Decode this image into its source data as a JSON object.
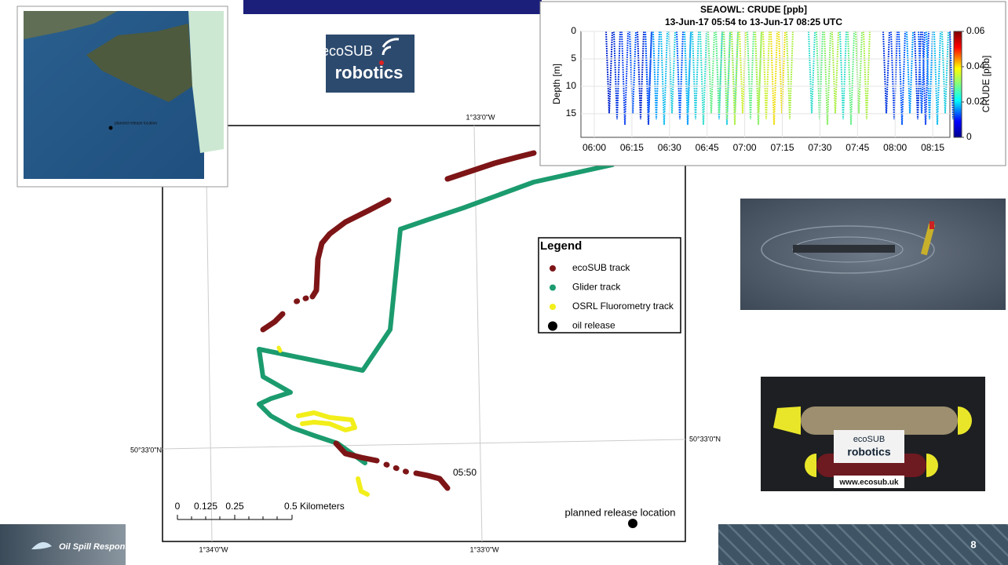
{
  "footer": {
    "brand": "Oil Spill Response",
    "page_number": "8"
  },
  "logo": {
    "line1": "ecoSUB",
    "line2": "robotics"
  },
  "map": {
    "grid_labels": {
      "top": "1°33'0\"W",
      "bottom_left": "1°34'0\"W",
      "bottom_right": "1°33'0\"W",
      "left": "50°33'0\"N",
      "right": "50°33'0\"N"
    },
    "legend": {
      "title": "Legend",
      "items": [
        {
          "label": "ecoSUB track",
          "color": "#7d1517"
        },
        {
          "label": "Glider track",
          "color": "#1b9b6e"
        },
        {
          "label": "OSRL Fluorometry track",
          "color": "#f2ee1a"
        },
        {
          "label": "oil release",
          "color": "#000000"
        }
      ]
    },
    "time_label": "05:50",
    "release_label": "planned release location",
    "scale_bar": [
      "0",
      "0.125",
      "0.25",
      "0.5 Kilometers"
    ]
  },
  "inset_map": {
    "label": "planned release location"
  },
  "inset_chart": {
    "title": "SEAOWL: CRUDE [ppb]",
    "subtitle": "13-Jun-17 05:54 to 13-Jun-17 08:25 UTC",
    "y_label": "Depth [m]",
    "ylim": [
      0,
      19.3
    ],
    "yticks": [
      0,
      5,
      10,
      15
    ],
    "xticks": [
      "06:00",
      "06:15",
      "06:30",
      "06:45",
      "07:00",
      "07:15",
      "07:30",
      "07:45",
      "08:00",
      "08:15"
    ],
    "colorbar": {
      "label": "CRUDE [ppb]",
      "clim": [
        0,
        0.06
      ],
      "ticks": [
        0,
        0.02,
        0.04,
        0.06
      ]
    }
  },
  "photo": {
    "sign_line1": "ecoSUB",
    "sign_line2": "robotics",
    "url": "www.ecosub.uk"
  }
}
